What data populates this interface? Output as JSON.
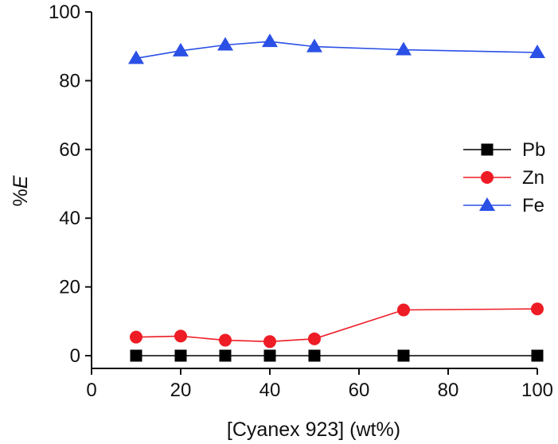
{
  "chart_data": {
    "type": "line",
    "title": "",
    "xlabel": "[Cyanex 923] (wt%)",
    "ylabel_prefix": "%",
    "ylabel_var": "E",
    "xlim": [
      0,
      100
    ],
    "ylim": [
      0,
      100
    ],
    "x_ticks": [
      0,
      20,
      40,
      60,
      80,
      100
    ],
    "y_ticks": [
      0,
      20,
      40,
      60,
      80,
      100
    ],
    "grid": false,
    "legend_position": "right",
    "series": [
      {
        "name": "Pb",
        "color": "#000000",
        "marker": "square",
        "x": [
          10,
          20,
          30,
          40,
          50,
          70,
          100
        ],
        "y": [
          0,
          0,
          0,
          0,
          0,
          0,
          0
        ]
      },
      {
        "name": "Zn",
        "color": "#ee1c25",
        "marker": "circle",
        "x": [
          10,
          20,
          30,
          40,
          50,
          70,
          100
        ],
        "y": [
          5.4,
          5.7,
          4.5,
          4.1,
          4.9,
          13.3,
          13.6
        ]
      },
      {
        "name": "Fe",
        "color": "#2b50e6",
        "marker": "triangle",
        "x": [
          10,
          20,
          30,
          40,
          50,
          70,
          100
        ],
        "y": [
          86.5,
          88.7,
          90.4,
          91.4,
          89.9,
          89.0,
          88.2
        ]
      }
    ]
  }
}
